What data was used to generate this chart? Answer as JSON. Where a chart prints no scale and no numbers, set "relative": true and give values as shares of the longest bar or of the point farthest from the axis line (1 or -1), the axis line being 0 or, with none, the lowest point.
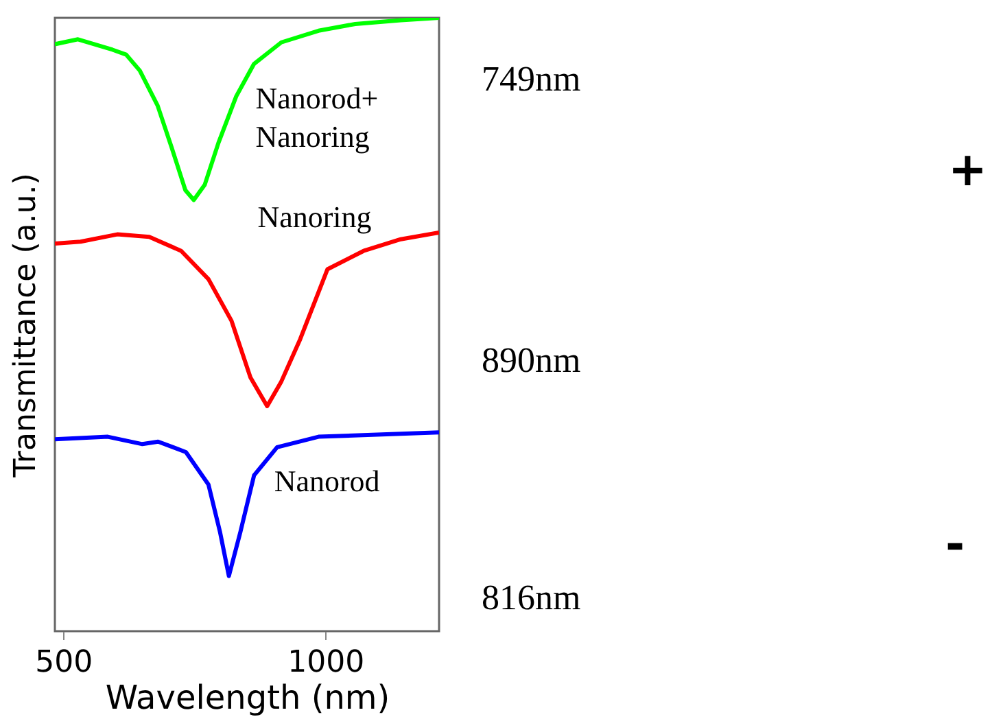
{
  "chart_data": {
    "type": "line",
    "xlabel": "Wavelength (nm)",
    "ylabel": "Transmittance (a.u.)",
    "relative": true,
    "xlim": [
      484,
      1217
    ],
    "xticks": [
      500,
      1000
    ],
    "grid": false,
    "line_style": "solid",
    "marker": "none",
    "series": [
      {
        "name": "Nanorod+ Nanoring",
        "color": "#00ff00",
        "x": [
          484,
          528,
          594,
          620,
          646,
          680,
          707,
          733,
          749,
          770,
          796,
          830,
          864,
          916,
          987,
          1057,
          1144,
          1217
        ],
        "values": [
          0.957,
          0.965,
          0.948,
          0.94,
          0.914,
          0.857,
          0.788,
          0.719,
          0.703,
          0.728,
          0.796,
          0.872,
          0.925,
          0.96,
          0.979,
          0.99,
          0.996,
          1
        ]
      },
      {
        "name": "Nanoring",
        "color": "#ff0000",
        "x": [
          484,
          533,
          603,
          664,
          725,
          777,
          821,
          830,
          857,
          889,
          916,
          952,
          1004,
          1073,
          1144,
          1217
        ],
        "values": [
          0.632,
          0.635,
          0.647,
          0.643,
          0.62,
          0.574,
          0.506,
          0.483,
          0.414,
          0.367,
          0.407,
          0.476,
          0.59,
          0.62,
          0.639,
          0.65
        ]
      },
      {
        "name": "Nanorod",
        "color": "#0000ff",
        "x": [
          484,
          585,
          651,
          681,
          734,
          777,
          799,
          816,
          838,
          864,
          908,
          987,
          1217
        ],
        "values": [
          0.313,
          0.317,
          0.305,
          0.309,
          0.292,
          0.239,
          0.162,
          0.09,
          0.162,
          0.254,
          0.3,
          0.317,
          0.324
        ]
      }
    ],
    "annotations": [
      "749nm",
      "890nm",
      "816nm",
      "+",
      "-"
    ]
  }
}
